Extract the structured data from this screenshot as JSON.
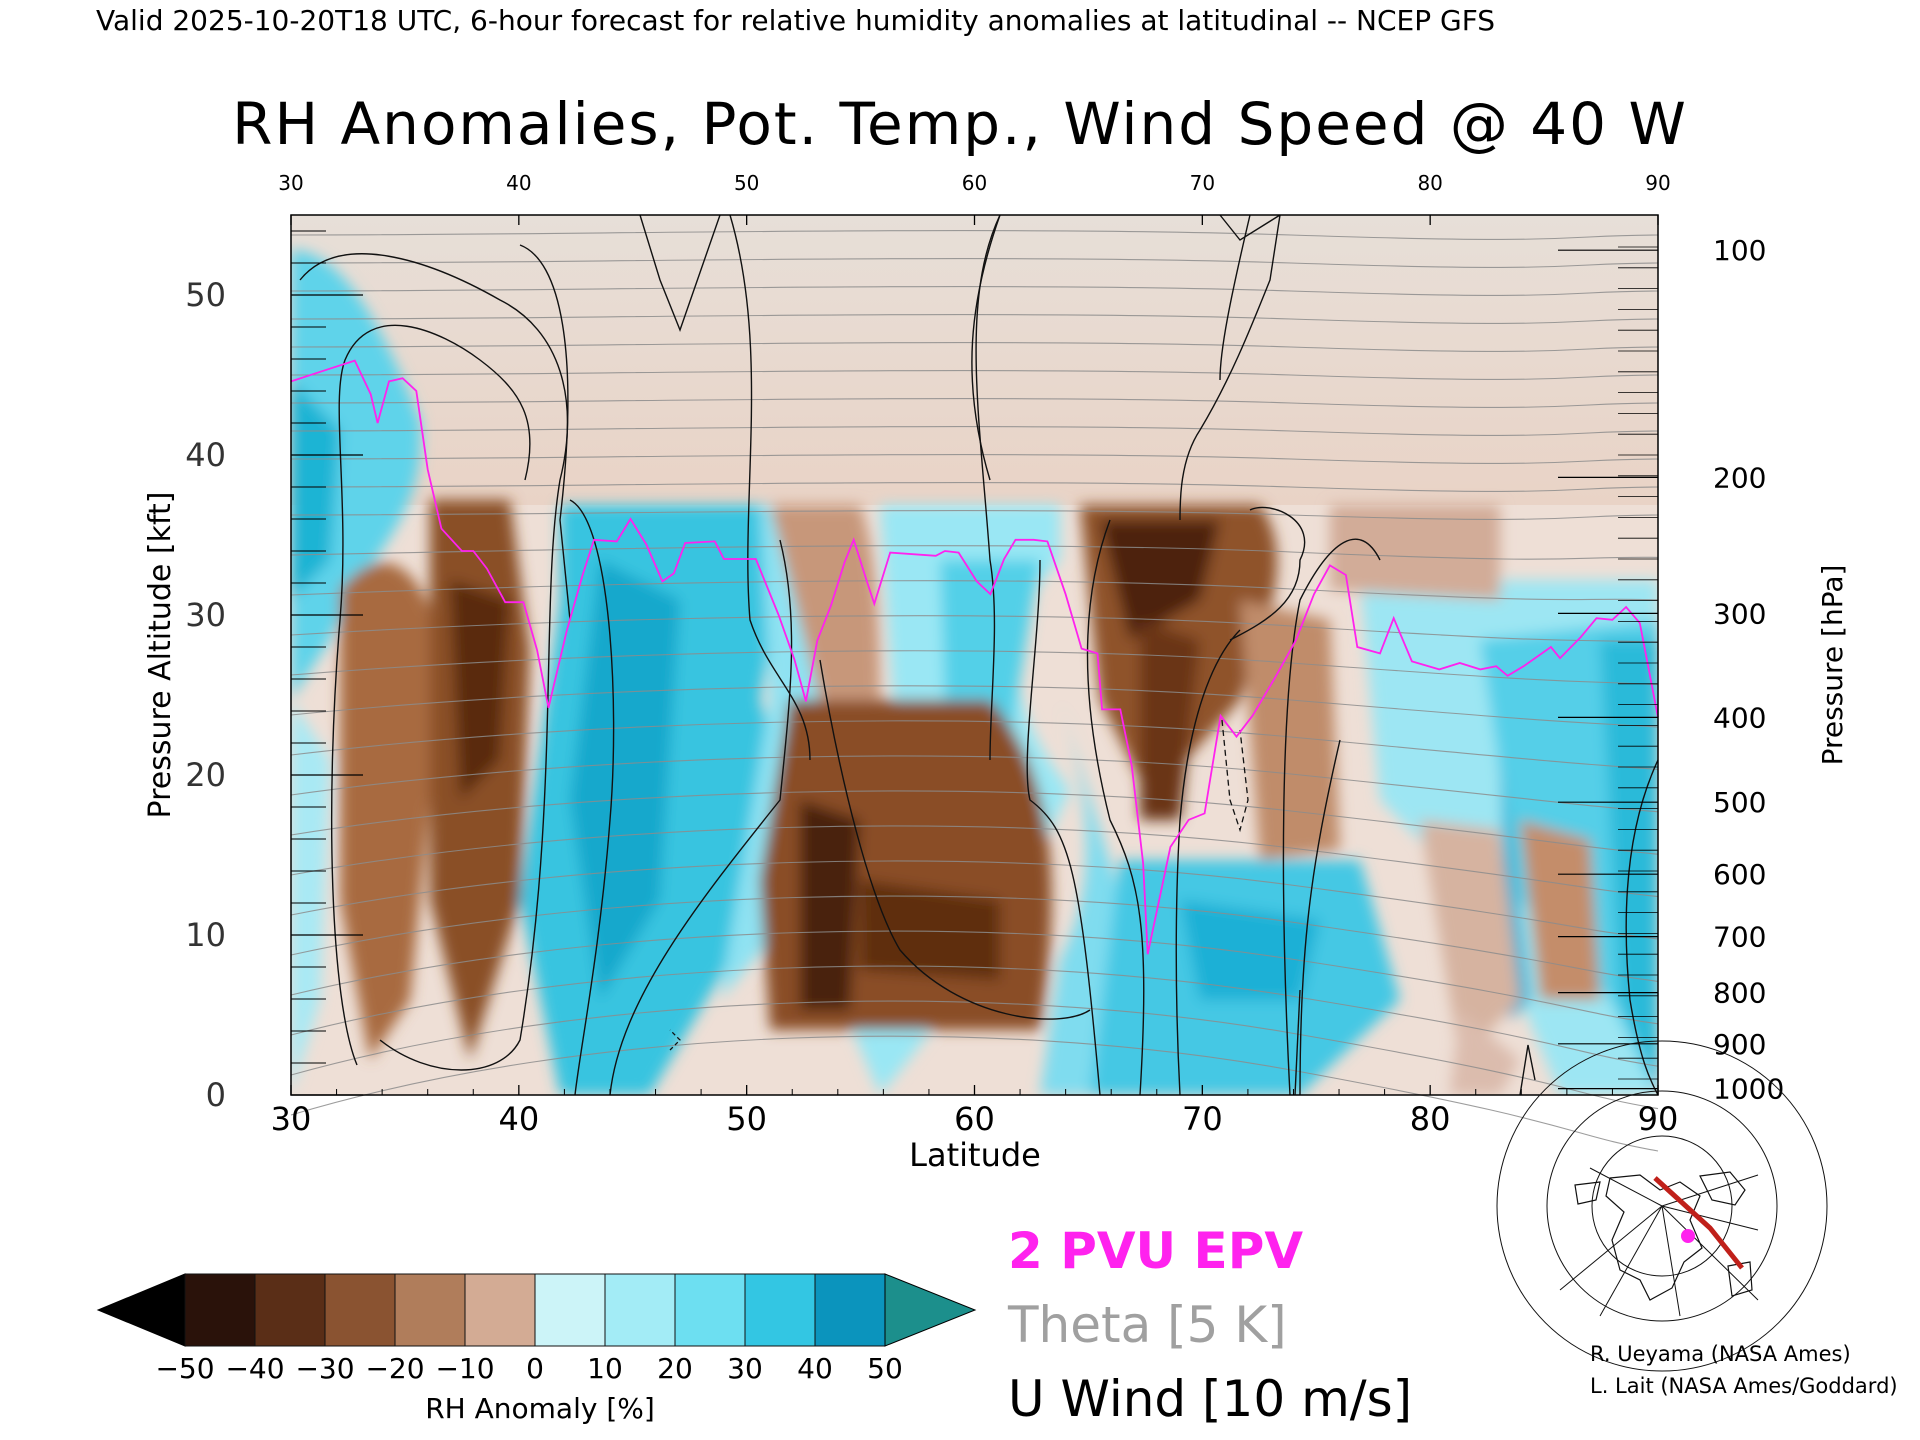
{
  "header_line": "Valid 2025-10-20T18 UTC, 6-hour forecast for relative humidity anomalies at latitudinal -- NCEP GFS",
  "chart_data": {
    "type": "heatmap",
    "title": "RH Anomalies, Pot. Temp., Wind Speed @ 40 W",
    "xlabel": "Latitude",
    "ylabel": "Pressure Altitude [kft]",
    "y2label": "Pressure [hPa]",
    "xlim": [
      30,
      90
    ],
    "ylim": [
      0,
      55
    ],
    "x_ticks": [
      30,
      40,
      50,
      60,
      70,
      80,
      90
    ],
    "y_ticks": [
      0,
      10,
      20,
      30,
      40,
      50
    ],
    "pressure_ticks": [
      {
        "label": "100",
        "kft": 52.8
      },
      {
        "label": "200",
        "kft": 38.6
      },
      {
        "label": "300",
        "kft": 30.1
      },
      {
        "label": "400",
        "kft": 23.6
      },
      {
        "label": "500",
        "kft": 18.3
      },
      {
        "label": "600",
        "kft": 13.8
      },
      {
        "label": "700",
        "kft": 9.9
      },
      {
        "label": "800",
        "kft": 6.4
      },
      {
        "label": "900",
        "kft": 3.2
      },
      {
        "label": "1000",
        "kft": 0.4
      }
    ],
    "pvu_2_line": [
      [
        30,
        44.6
      ],
      [
        31.5,
        45.3
      ],
      [
        32.8,
        45.9
      ],
      [
        33.5,
        43.8
      ],
      [
        33.8,
        42.0
      ],
      [
        34.3,
        44.6
      ],
      [
        34.9,
        44.8
      ],
      [
        35.5,
        44.0
      ],
      [
        36,
        39.1
      ],
      [
        36.6,
        35.4
      ],
      [
        37.5,
        34.0
      ],
      [
        38,
        34.0
      ],
      [
        38.6,
        32.9
      ],
      [
        39.4,
        30.8
      ],
      [
        40.2,
        30.8
      ],
      [
        40.8,
        27.8
      ],
      [
        41.3,
        24.2
      ],
      [
        42.1,
        29.0
      ],
      [
        42.8,
        32.5
      ],
      [
        43.3,
        34.7
      ],
      [
        44.3,
        34.6
      ],
      [
        44.9,
        36.0
      ],
      [
        45.6,
        34.4
      ],
      [
        46.3,
        32.1
      ],
      [
        46.8,
        32.6
      ],
      [
        47.3,
        34.5
      ],
      [
        48.6,
        34.6
      ],
      [
        49,
        33.5
      ],
      [
        50.4,
        33.5
      ],
      [
        51.4,
        30.0
      ],
      [
        52.1,
        27.2
      ],
      [
        52.6,
        24.6
      ],
      [
        53.1,
        28.4
      ],
      [
        53.7,
        30.6
      ],
      [
        54.3,
        33.3
      ],
      [
        54.7,
        34.7
      ],
      [
        55.3,
        32.0
      ],
      [
        55.6,
        30.7
      ],
      [
        56.3,
        33.9
      ],
      [
        58.3,
        33.7
      ],
      [
        58.7,
        34.0
      ],
      [
        59.3,
        33.9
      ],
      [
        60.1,
        32.1
      ],
      [
        60.7,
        31.3
      ],
      [
        61.3,
        33.5
      ],
      [
        61.8,
        34.7
      ],
      [
        62.6,
        34.7
      ],
      [
        63.2,
        34.6
      ],
      [
        64,
        31.3
      ],
      [
        64.7,
        27.9
      ],
      [
        65.4,
        27.6
      ],
      [
        65.6,
        24.1
      ],
      [
        66.4,
        24.1
      ],
      [
        66.9,
        20.6
      ],
      [
        67.4,
        14.5
      ],
      [
        67.6,
        8.8
      ],
      [
        68.6,
        15.5
      ],
      [
        69.4,
        17.2
      ],
      [
        70.1,
        17.6
      ],
      [
        70.8,
        23.7
      ],
      [
        71.5,
        22.4
      ],
      [
        72.2,
        23.7
      ],
      [
        73.2,
        26.1
      ],
      [
        74.1,
        28.4
      ],
      [
        74.9,
        31.3
      ],
      [
        75.6,
        33.1
      ],
      [
        76.3,
        32.5
      ],
      [
        76.8,
        28.0
      ],
      [
        77.8,
        27.6
      ],
      [
        78.4,
        29.8
      ],
      [
        79.2,
        27.1
      ],
      [
        80.4,
        26.6
      ],
      [
        81.3,
        27.0
      ],
      [
        82.2,
        26.6
      ],
      [
        82.9,
        26.8
      ],
      [
        83.4,
        26.2
      ],
      [
        84.1,
        26.8
      ],
      [
        85.3,
        28.0
      ],
      [
        85.7,
        27.3
      ],
      [
        86.6,
        28.6
      ],
      [
        87.3,
        29.8
      ],
      [
        88,
        29.7
      ],
      [
        88.6,
        30.5
      ],
      [
        89.2,
        29.5
      ],
      [
        90,
        23.6
      ]
    ]
  },
  "legend": {
    "colorbar_label": "RH Anomaly [%]",
    "colorbar_ticks": [
      "−50",
      "−40",
      "−30",
      "−20",
      "−10",
      "0",
      "10",
      "20",
      "30",
      "40",
      "50"
    ],
    "colorbar_colors": [
      "#2a120a",
      "#5a2e17",
      "#8a5331",
      "#b07d5b",
      "#d3ab94",
      "#ece0d8",
      "#ccf4f8",
      "#a3ecf6",
      "#6ddff1",
      "#33c6e3",
      "#0b94bd"
    ],
    "colorbar_low_color": "#000000",
    "colorbar_high_color": "#1c8f8c",
    "pvu_label": "2 PVU EPV",
    "theta_label": "Theta [5 K]",
    "wind_label": "U Wind [10 m/s]",
    "pvu_color": "#ff22ee"
  },
  "credits": [
    "R. Ueyama (NASA Ames)",
    "L. Lait (NASA Ames/Goddard)"
  ]
}
